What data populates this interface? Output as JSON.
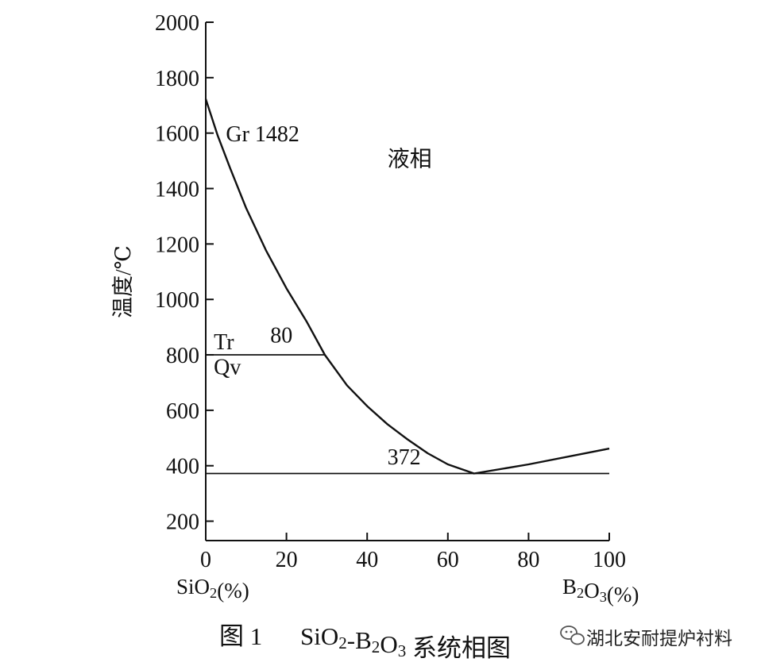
{
  "chart_data": {
    "type": "line",
    "title": "",
    "xlabel_left": "SiO<sub>2</sub>(%)",
    "xlabel_right": "B<sub>2</sub>O<sub>3</sub>(%)",
    "ylabel": "温度/℃",
    "xlim": [
      0,
      100
    ],
    "ylim": [
      130,
      2000
    ],
    "x_ticks": [
      0,
      20,
      40,
      60,
      80,
      100
    ],
    "y_ticks": [
      200,
      400,
      600,
      800,
      1000,
      1200,
      1400,
      1600,
      1800,
      2000
    ],
    "grid": false,
    "series": [
      {
        "values_xy": [
          [
            0,
            1723
          ],
          [
            3,
            1590
          ],
          [
            6,
            1475
          ],
          [
            10,
            1330
          ],
          [
            15,
            1175
          ],
          [
            20,
            1040
          ],
          [
            25,
            920
          ],
          [
            29.5,
            800
          ],
          [
            35,
            690
          ],
          [
            40,
            615
          ],
          [
            45,
            550
          ],
          [
            50,
            495
          ],
          [
            55,
            445
          ],
          [
            60,
            405
          ],
          [
            66.5,
            372
          ],
          [
            80,
            405
          ],
          [
            100,
            462
          ]
        ]
      },
      {
        "values_xy": [
          [
            0,
            800
          ],
          [
            29.5,
            800
          ]
        ]
      },
      {
        "values_xy": [
          [
            0,
            372
          ],
          [
            100,
            372
          ]
        ]
      }
    ],
    "annotations": [
      {
        "text": "Gr 1482",
        "x": 5,
        "y": 1570
      },
      {
        "text": "液相",
        "x": 45,
        "y": 1480
      },
      {
        "text": "80",
        "x": 16,
        "y": 845
      },
      {
        "text": "Tr",
        "x": 2,
        "y": 820
      },
      {
        "text": "Qv",
        "x": 2,
        "y": 730
      },
      {
        "text": "372",
        "x": 45,
        "y": 405
      }
    ]
  },
  "caption": {
    "fig": "图 1",
    "title": "SiO<sub>2</sub>-B<sub>2</sub>O<sub>3</sub> 系统相图"
  },
  "watermark": {
    "icon": "wechat-icon",
    "text": "湖北安耐提炉衬料"
  }
}
